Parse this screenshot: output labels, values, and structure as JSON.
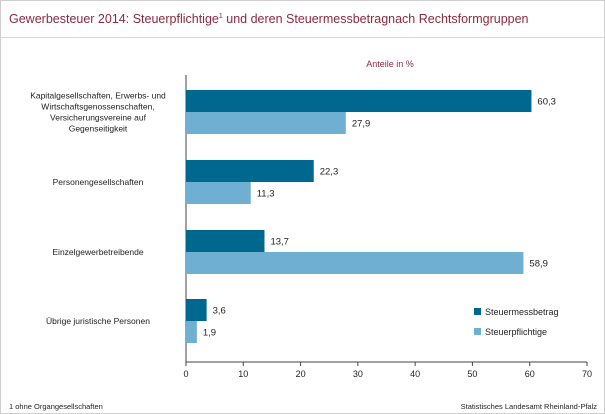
{
  "title": "Gewerbesteuer 2014: Steuerpflichtige",
  "title_sup": "1",
  "title_rest": " und deren Steuermessbetragnach Rechtsformgruppen",
  "unit_label": "Anteile in %",
  "footnote": "1 ohne Organgesellschaften",
  "source": "Statistisches Landesamt Rheinland-Pfalz",
  "chart_data": {
    "type": "bar",
    "orientation": "horizontal",
    "categories": [
      [
        "Kapitalgesellschaften, Erwerbs- und",
        "Wirtschaftsgenossenschaften,",
        "Versicherungsvereine auf",
        "Gegenseitigkeit"
      ],
      [
        "Personengesellschaften"
      ],
      [
        "Einzelgewerbetreibende"
      ],
      [
        "Übrige juristische Personen"
      ]
    ],
    "series": [
      {
        "name": "Steuermessbetrag",
        "color": "#00688f",
        "values": [
          60.3,
          22.3,
          13.7,
          3.6
        ],
        "labels": [
          "60,3",
          "22,3",
          "13,7",
          "3,6"
        ]
      },
      {
        "name": "Steuerpflichtige",
        "color": "#6fb0d2",
        "values": [
          27.9,
          11.3,
          58.9,
          1.9
        ],
        "labels": [
          "27,9",
          "11,3",
          "58,9",
          "1,9"
        ]
      }
    ],
    "xlim": [
      0,
      70
    ],
    "xticks": [
      0,
      10,
      20,
      30,
      40,
      50,
      60,
      70
    ],
    "legend_position": "bottom-right",
    "grid": false
  }
}
